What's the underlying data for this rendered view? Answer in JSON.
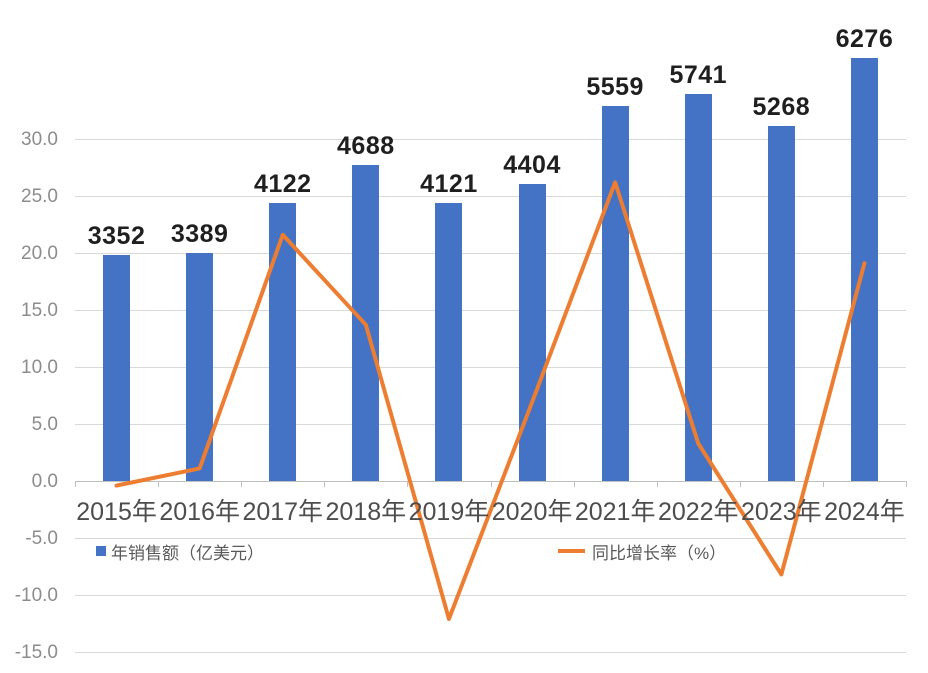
{
  "chart_data": {
    "type": "bar",
    "title": "",
    "categories": [
      "2015年",
      "2016年",
      "2017年",
      "2018年",
      "2019年",
      "2020年",
      "2021年",
      "2022年",
      "2023年",
      "2024年"
    ],
    "series": [
      {
        "name": "年销售额（亿美元）",
        "type": "bar",
        "color": "#4472C4",
        "values": [
          3352,
          3389,
          4122,
          4688,
          4121,
          4404,
          5559,
          5741,
          5268,
          6276
        ],
        "data_labels_shown": true
      },
      {
        "name": "同比增长率（%）",
        "type": "line",
        "color": "#ED7D31",
        "values": [
          -0.4,
          1.1,
          21.6,
          13.7,
          -12.1,
          6.9,
          26.2,
          3.3,
          -8.2,
          19.1
        ]
      }
    ],
    "y_axis": {
      "side": "left",
      "tick_labels": [
        "30.0",
        "25.0",
        "20.0",
        "15.0",
        "10.0",
        "5.0",
        "0.0",
        "-5.0",
        "-10.0",
        "-15.0"
      ],
      "tick_values": [
        30,
        25,
        20,
        15,
        10,
        5,
        0,
        -5,
        -10,
        -15
      ],
      "range": [
        -15,
        30
      ],
      "applies_to_series": "同比增长率（%）"
    },
    "legend": {
      "position": "bottom",
      "entries": [
        {
          "label": "年销售额（亿美元）",
          "marker": "square",
          "color": "#4472C4"
        },
        {
          "label": "同比增长率（%）",
          "marker": "line",
          "color": "#ED7D31"
        }
      ]
    },
    "grid": true,
    "colors": {
      "gridline": "#D9D9D9",
      "zero_axis_line": "#BFBFBF",
      "data_label": "#1F1F1F",
      "x_tick_label": "#4D4D4D",
      "y_tick_label": "#8C8C8C",
      "legend_text": "#595959",
      "background": "#FFFFFF"
    }
  }
}
